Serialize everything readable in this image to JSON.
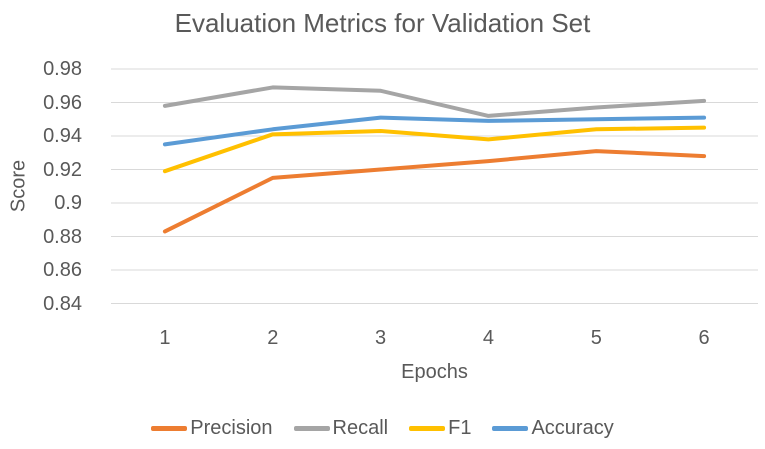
{
  "chart_data": {
    "type": "line",
    "title": "Evaluation Metrics for Validation Set",
    "xlabel": "Epochs",
    "ylabel": "Score",
    "categories": [
      "1",
      "2",
      "3",
      "4",
      "5",
      "6"
    ],
    "series": [
      {
        "name": "Precision",
        "color": "#ED7D31",
        "values": [
          0.883,
          0.915,
          0.92,
          0.925,
          0.931,
          0.928
        ]
      },
      {
        "name": "Recall",
        "color": "#A5A5A5",
        "values": [
          0.958,
          0.969,
          0.967,
          0.952,
          0.957,
          0.961
        ]
      },
      {
        "name": "F1",
        "color": "#FFC000",
        "values": [
          0.919,
          0.941,
          0.943,
          0.938,
          0.944,
          0.945
        ]
      },
      {
        "name": "Accuracy",
        "color": "#5B9BD5",
        "values": [
          0.935,
          0.944,
          0.951,
          0.949,
          0.95,
          0.951
        ]
      }
    ],
    "ylim": [
      0.84,
      0.98
    ],
    "ytick_labels": [
      "0.84",
      "0.86",
      "0.88",
      "0.9",
      "0.92",
      "0.94",
      "0.96",
      "0.98"
    ],
    "grid": true,
    "gridline_color": "#D9D9D9",
    "text_color": "#595959",
    "background": "#FFFFFF",
    "legend_position": "bottom"
  }
}
